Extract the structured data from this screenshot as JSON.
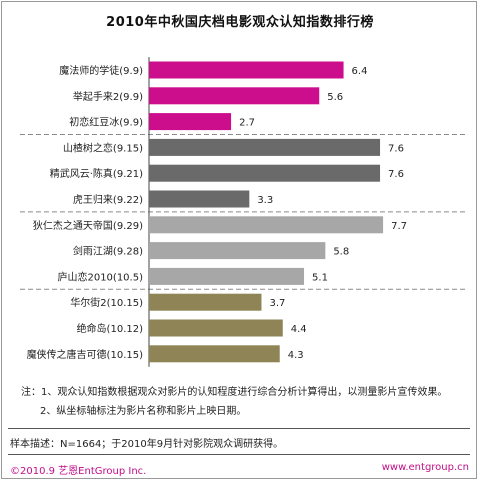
{
  "chart_data": {
    "type": "bar",
    "orientation": "horizontal",
    "title": "2010年中秋国庆档电影观众认知指数排行榜",
    "categories": [
      "魔法师的学徒(9.9)",
      "举起手来2(9.9)",
      "初恋红豆冰(9.9)",
      "山楂树之恋(9.15)",
      "精武风云·陈真(9.21)",
      "虎王归来(9.22)",
      "狄仁杰之通天帝国(9.29)",
      "剑雨江湖(9.28)",
      "庐山恋2010(10.5)",
      "华尔街2(10.15)",
      "绝命岛(10.12)",
      "魔侠传之唐吉可德(10.15)"
    ],
    "values": [
      6.4,
      5.6,
      2.7,
      7.6,
      7.6,
      3.3,
      7.7,
      5.8,
      5.1,
      3.7,
      4.4,
      4.3
    ],
    "value_labels": [
      "6.4",
      "5.6",
      "2.7",
      "7.6",
      "7.6",
      "3.3",
      "7.7",
      "5.8",
      "5.1",
      "3.7",
      "4.4",
      "4.3"
    ],
    "groups": [
      {
        "color": "#cc0e8d",
        "start": 0,
        "count": 3
      },
      {
        "color": "#6a6a6a",
        "start": 3,
        "count": 3
      },
      {
        "color": "#a7a7a7",
        "start": 6,
        "count": 3
      },
      {
        "color": "#8e8456",
        "start": 9,
        "count": 3
      }
    ],
    "xlim": [
      0,
      10
    ],
    "grid": false,
    "legend": "none"
  },
  "notes": {
    "line1": "注：1、观众认知指数根据观众对影片的认知程度进行综合分析计算得出，以测量影片宣传效果。",
    "line2": "2、纵坐标轴标注为影片名称和影片上映日期。"
  },
  "sample": "样本描述：N=1664；于2010年9月针对影院观众调研获得。",
  "footer": {
    "left": "©2010.9  艺恩EntGroup Inc.",
    "right": "www.entgroup.cn",
    "brand_color": "#c10e8a"
  }
}
